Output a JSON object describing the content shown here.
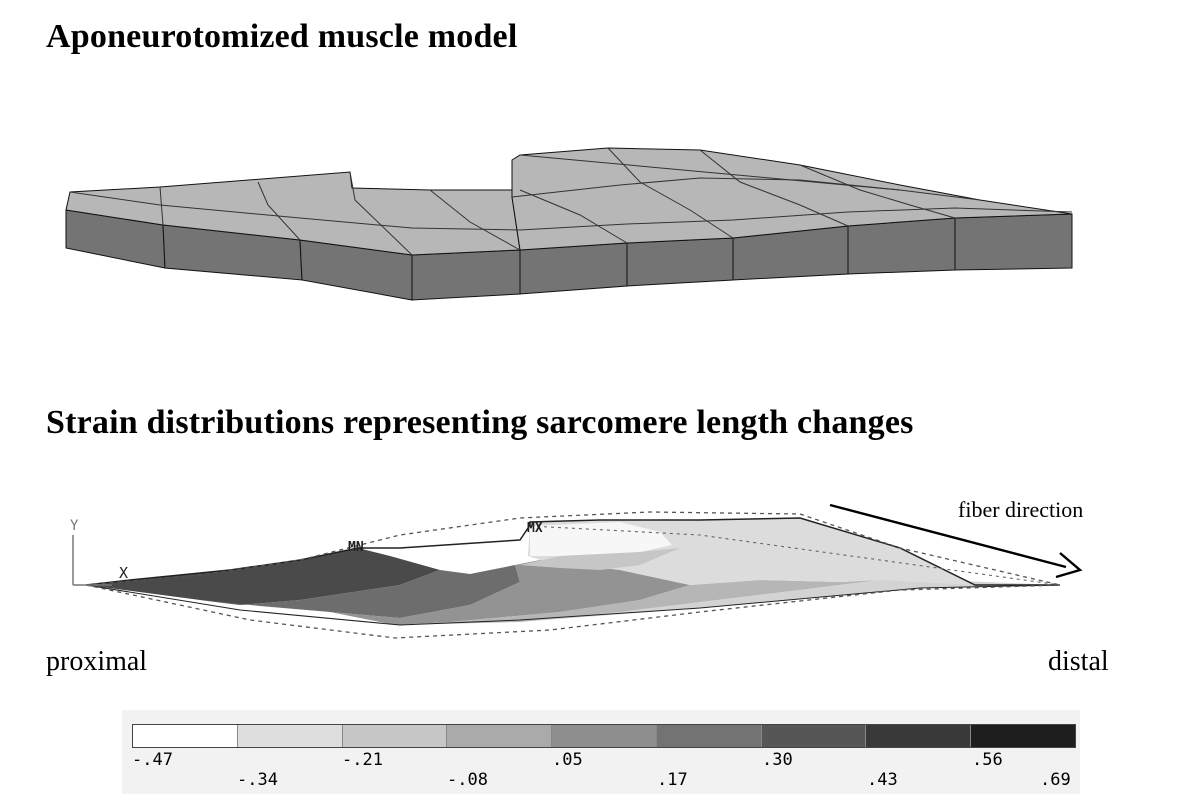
{
  "titles": {
    "model": "Aponeurotomized muscle model",
    "strain": "Strain distributions representing sarcomere length changes"
  },
  "labels": {
    "proximal": "proximal",
    "distal": "distal",
    "fiber_direction": "fiber direction"
  },
  "axis_labels": {
    "y": "Y",
    "x": "X",
    "mn": "MN",
    "mx": "MX"
  },
  "legend": {
    "ticks_top": [
      "-.47",
      "-.21",
      ".05",
      ".30",
      ".56"
    ],
    "ticks_bottom": [
      "-.34",
      "-.08",
      ".17",
      ".43",
      ".69"
    ],
    "colors": [
      "#ffffff",
      "#dedede",
      "#c6c6c6",
      "#aaaaaa",
      "#8e8e8e",
      "#737373",
      "#565656",
      "#393939",
      "#1e1e1e"
    ]
  }
}
